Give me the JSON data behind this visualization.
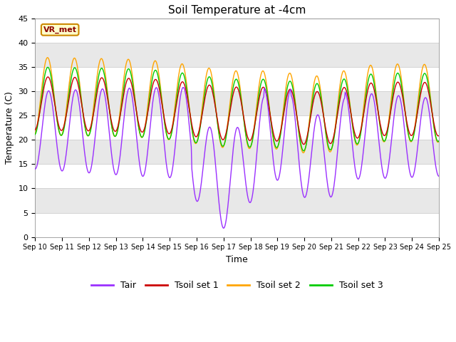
{
  "title": "Soil Temperature at -4cm",
  "xlabel": "Time",
  "ylabel": "Temperature (C)",
  "ylim": [
    0,
    45
  ],
  "xlim": [
    0,
    15
  ],
  "x_tick_labels": [
    "Sep 10",
    "Sep 11",
    "Sep 12",
    "Sep 13",
    "Sep 14",
    "Sep 15",
    "Sep 16",
    "Sep 17",
    "Sep 18",
    "Sep 19",
    "Sep 20",
    "Sep 21",
    "Sep 22",
    "Sep 23",
    "Sep 24",
    "Sep 25"
  ],
  "colors": {
    "Tair": "#9B30FF",
    "Tsoil1": "#CC0000",
    "Tsoil2": "#FFA500",
    "Tsoil3": "#00CC00"
  },
  "annotation_text": "VR_met",
  "annotation_bg": "#FFFFCC",
  "annotation_border": "#CC8800",
  "background_outer": "#FFFFFF",
  "yticks": [
    0,
    5,
    10,
    15,
    20,
    25,
    30,
    35,
    40,
    45
  ],
  "title_fontsize": 11,
  "axis_fontsize": 9,
  "tick_fontsize": 8,
  "legend_fontsize": 9,
  "band_colors": [
    "#FFFFFF",
    "#E8E8E8"
  ],
  "band_boundaries": [
    0,
    5,
    10,
    15,
    20,
    25,
    30,
    35,
    40,
    45
  ]
}
